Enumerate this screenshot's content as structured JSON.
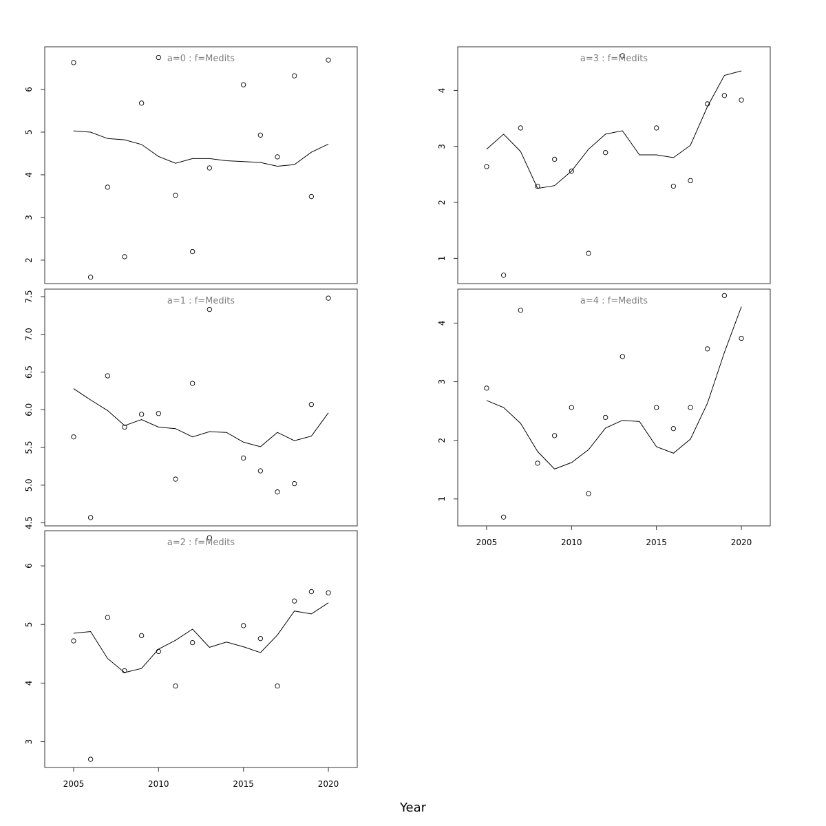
{
  "figure": {
    "xlabel": "Year"
  },
  "chart_data": [
    {
      "type": "scatter",
      "title": "a=0 : f=Medits",
      "x": [
        2005,
        2006,
        2007,
        2008,
        2009,
        2010,
        2011,
        2012,
        2013,
        2014,
        2015,
        2016,
        2017,
        2018,
        2019,
        2020
      ],
      "points": [
        6.63,
        1.6,
        3.71,
        2.08,
        5.68,
        6.75,
        3.52,
        2.2,
        4.16,
        null,
        6.11,
        4.93,
        4.42,
        6.32,
        3.49,
        6.69
      ],
      "fit": [
        5.03,
        5.0,
        4.85,
        4.82,
        4.71,
        4.43,
        4.27,
        4.38,
        4.38,
        4.33,
        4.31,
        4.29,
        4.2,
        4.24,
        4.53,
        4.72
      ],
      "ylim": [
        1.45,
        7.0
      ],
      "yticks": [
        2,
        3,
        4,
        5,
        6
      ],
      "xticks": [
        2005,
        2010,
        2015,
        2020
      ],
      "show_xticks": false
    },
    {
      "type": "scatter",
      "title": "a=1 : f=Medits",
      "x": [
        2005,
        2006,
        2007,
        2008,
        2009,
        2010,
        2011,
        2012,
        2013,
        2014,
        2015,
        2016,
        2017,
        2018,
        2019,
        2020
      ],
      "points": [
        5.64,
        4.57,
        6.45,
        5.77,
        5.94,
        5.95,
        5.08,
        6.35,
        7.33,
        null,
        5.36,
        5.19,
        4.91,
        5.02,
        6.07,
        7.48
      ],
      "fit": [
        6.28,
        6.13,
        5.99,
        5.79,
        5.87,
        5.77,
        5.75,
        5.64,
        5.71,
        5.7,
        5.57,
        5.51,
        5.7,
        5.59,
        5.65,
        5.96
      ],
      "ylim": [
        4.46,
        7.6
      ],
      "yticks": [
        4.5,
        5.0,
        5.5,
        6.0,
        6.5,
        7.0,
        7.5
      ],
      "ytick_labels": [
        "4.5",
        "5.0",
        "5.5",
        "6.0",
        "6.5",
        "7.0",
        "7.5"
      ],
      "xticks": [
        2005,
        2010,
        2015,
        2020
      ],
      "show_xticks": false
    },
    {
      "type": "scatter",
      "title": "a=2 : f=Medits",
      "x": [
        2005,
        2006,
        2007,
        2008,
        2009,
        2010,
        2011,
        2012,
        2013,
        2014,
        2015,
        2016,
        2017,
        2018,
        2019,
        2020
      ],
      "points": [
        4.72,
        2.7,
        5.12,
        4.21,
        4.81,
        4.54,
        3.95,
        4.69,
        6.48,
        null,
        4.98,
        4.76,
        3.95,
        5.4,
        5.56,
        5.54
      ],
      "fit": [
        4.85,
        4.88,
        4.42,
        4.18,
        4.25,
        4.58,
        4.73,
        4.92,
        4.61,
        4.7,
        4.62,
        4.52,
        4.82,
        5.23,
        5.18,
        5.37
      ],
      "ylim": [
        2.56,
        6.6
      ],
      "yticks": [
        3,
        4,
        5,
        6
      ],
      "xticks": [
        2005,
        2010,
        2015,
        2020
      ],
      "show_xticks": true
    },
    {
      "type": "scatter",
      "title": "a=3 : f=Medits",
      "x": [
        2005,
        2006,
        2007,
        2008,
        2009,
        2010,
        2011,
        2012,
        2013,
        2014,
        2015,
        2016,
        2017,
        2018,
        2019,
        2020
      ],
      "points": [
        2.64,
        0.7,
        3.33,
        2.29,
        2.77,
        2.56,
        1.09,
        2.89,
        4.62,
        null,
        3.33,
        2.29,
        2.39,
        3.76,
        3.91,
        3.83
      ],
      "fit": [
        2.95,
        3.22,
        2.91,
        2.25,
        2.3,
        2.56,
        2.95,
        3.22,
        3.28,
        2.85,
        2.85,
        2.8,
        3.02,
        3.71,
        4.27,
        4.35
      ],
      "ylim": [
        0.55,
        4.78
      ],
      "yticks": [
        1,
        2,
        3,
        4
      ],
      "xticks": [
        2005,
        2010,
        2015,
        2020
      ],
      "show_xticks": false
    },
    {
      "type": "scatter",
      "title": "a=4 : f=Medits",
      "x": [
        2005,
        2006,
        2007,
        2008,
        2009,
        2010,
        2011,
        2012,
        2013,
        2014,
        2015,
        2016,
        2017,
        2018,
        2019,
        2020
      ],
      "points": [
        2.89,
        0.69,
        4.22,
        1.61,
        2.08,
        2.56,
        1.09,
        2.39,
        3.43,
        null,
        2.56,
        2.2,
        2.56,
        3.56,
        4.47,
        3.74
      ],
      "fit": [
        2.68,
        2.56,
        2.29,
        1.81,
        1.51,
        1.62,
        1.84,
        2.21,
        2.34,
        2.32,
        1.89,
        1.78,
        2.02,
        2.63,
        3.5,
        4.28
      ],
      "ylim": [
        0.54,
        4.58
      ],
      "yticks": [
        1,
        2,
        3,
        4
      ],
      "xticks": [
        2005,
        2010,
        2015,
        2020
      ],
      "show_xticks": true
    }
  ]
}
